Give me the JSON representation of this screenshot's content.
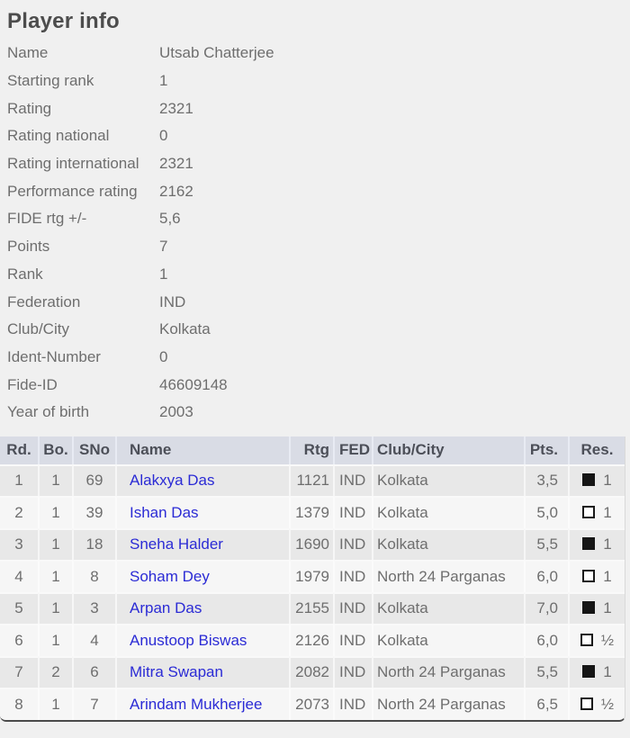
{
  "title": "Player info",
  "colors": {
    "page_bg": "#f0f0f0",
    "table_header_bg": "#d9dce5",
    "row_odd_bg": "#e8e8e8",
    "row_even_bg": "#f6f6f6",
    "link_blue": "#2b2bd5",
    "body_text": "#6e6e6e",
    "table_bottom_border": "#4a4a4a"
  },
  "info_rows": [
    {
      "label": "Name",
      "value": "Utsab Chatterjee"
    },
    {
      "label": "Starting rank",
      "value": "1"
    },
    {
      "label": "Rating",
      "value": "2321"
    },
    {
      "label": "Rating national",
      "value": "0"
    },
    {
      "label": "Rating international",
      "value": "2321"
    },
    {
      "label": "Performance rating",
      "value": "2162"
    },
    {
      "label": "FIDE rtg +/-",
      "value": "5,6"
    },
    {
      "label": "Points",
      "value": "7"
    },
    {
      "label": "Rank",
      "value": "1"
    },
    {
      "label": "Federation",
      "value": "IND"
    },
    {
      "label": "Club/City",
      "value": "Kolkata"
    },
    {
      "label": "Ident-Number",
      "value": "0"
    },
    {
      "label": "Fide-ID",
      "value": "46609148"
    },
    {
      "label": "Year of birth",
      "value": "2003"
    }
  ],
  "results_table": {
    "headers": {
      "rd": "Rd.",
      "bo": "Bo.",
      "sno": "SNo",
      "name": "Name",
      "rtg": "Rtg",
      "fed": "FED",
      "club": "Club/City",
      "pts": "Pts.",
      "res": "Res."
    },
    "rows": [
      {
        "rd": "1",
        "bo": "1",
        "sno": "69",
        "name": "Alakxya Das",
        "rtg": "1121",
        "fed": "IND",
        "club": "Kolkata",
        "pts": "3,5",
        "piece_color": "black",
        "result": "1"
      },
      {
        "rd": "2",
        "bo": "1",
        "sno": "39",
        "name": "Ishan Das",
        "rtg": "1379",
        "fed": "IND",
        "club": "Kolkata",
        "pts": "5,0",
        "piece_color": "white",
        "result": "1"
      },
      {
        "rd": "3",
        "bo": "1",
        "sno": "18",
        "name": "Sneha Halder",
        "rtg": "1690",
        "fed": "IND",
        "club": "Kolkata",
        "pts": "5,5",
        "piece_color": "black",
        "result": "1"
      },
      {
        "rd": "4",
        "bo": "1",
        "sno": "8",
        "name": "Soham Dey",
        "rtg": "1979",
        "fed": "IND",
        "club": "North 24 Parganas",
        "pts": "6,0",
        "piece_color": "white",
        "result": "1"
      },
      {
        "rd": "5",
        "bo": "1",
        "sno": "3",
        "name": "Arpan Das",
        "rtg": "2155",
        "fed": "IND",
        "club": "Kolkata",
        "pts": "7,0",
        "piece_color": "black",
        "result": "1"
      },
      {
        "rd": "6",
        "bo": "1",
        "sno": "4",
        "name": "Anustoop Biswas",
        "rtg": "2126",
        "fed": "IND",
        "club": "Kolkata",
        "pts": "6,0",
        "piece_color": "white",
        "result": "½"
      },
      {
        "rd": "7",
        "bo": "2",
        "sno": "6",
        "name": "Mitra Swapan",
        "rtg": "2082",
        "fed": "IND",
        "club": "North 24 Parganas",
        "pts": "5,5",
        "piece_color": "black",
        "result": "1"
      },
      {
        "rd": "8",
        "bo": "1",
        "sno": "7",
        "name": "Arindam Mukherjee",
        "rtg": "2073",
        "fed": "IND",
        "club": "North 24 Parganas",
        "pts": "6,5",
        "piece_color": "white",
        "result": "½"
      }
    ]
  }
}
